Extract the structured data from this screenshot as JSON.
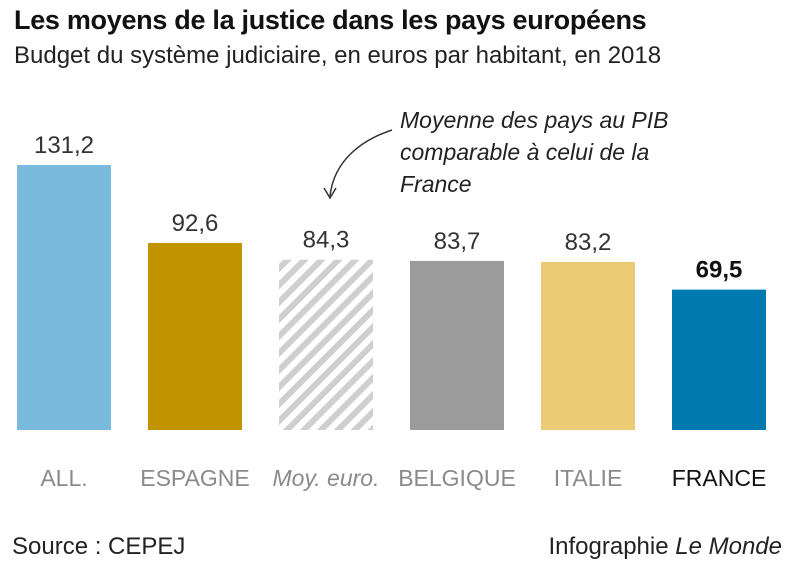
{
  "title": "Les moyens de la justice dans les pays européens",
  "subtitle": "Budget du système judiciaire, en euros par habitant, en 2018",
  "annotation": "Moyenne des pays au PIB comparable à celui de la France",
  "footer": {
    "source": "Source : CEPEJ",
    "credit_prefix": "Infographie",
    "credit_brand": "Le Monde"
  },
  "chart_data": {
    "type": "bar",
    "categories": [
      "ALL.",
      "ESPAGNE",
      "Moy. euro.",
      "BELGIQUE",
      "ITALIE",
      "FRANCE"
    ],
    "values": [
      131.2,
      92.6,
      84.3,
      83.7,
      83.2,
      69.5
    ],
    "value_labels": [
      "131,2",
      "92,6",
      "84,3",
      "83,7",
      "83,2",
      "69,5"
    ],
    "colors": [
      "#7abadc",
      "#c29500",
      "#cfcfcf",
      "#9b9b9b",
      "#eccb75",
      "#0079b0"
    ],
    "patterns": [
      "solid",
      "solid",
      "hatched",
      "solid",
      "solid",
      "solid"
    ],
    "highlight": "FRANCE",
    "ylim": [
      0,
      131.2
    ]
  }
}
